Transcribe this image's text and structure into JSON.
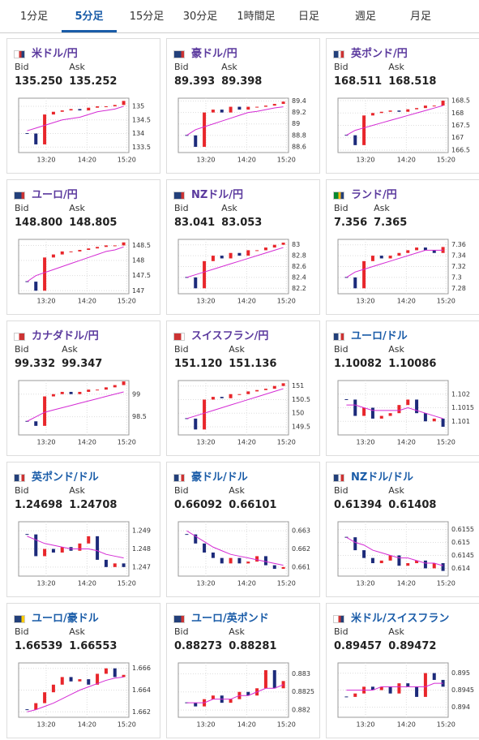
{
  "tabs": [
    "1分足",
    "5分足",
    "15分足",
    "30分足",
    "1時間足",
    "日足",
    "週足",
    "月足"
  ],
  "active_tab": 1,
  "labels": {
    "bid": "Bid",
    "ask": "Ask"
  },
  "xticks": [
    "13:20",
    "14:20",
    "15:20"
  ],
  "up_color": "#e8262b",
  "down_color": "#1c2a7a",
  "ma_color": "#d42bd4",
  "cards": [
    {
      "name": "米ドル/円",
      "name_color": "#5b3a9e",
      "bid": "135.250",
      "ask": "135.252",
      "ylim": [
        133.3,
        135.3
      ],
      "yticks": [
        135,
        134.5,
        134,
        133.5
      ],
      "close": [
        134.0,
        133.6,
        134.7,
        134.8,
        134.85,
        134.9,
        134.85,
        134.95,
        135.0,
        135.0,
        135.05,
        135.2
      ],
      "ma": [
        134.1,
        134.2,
        134.3,
        134.4,
        134.5,
        134.55,
        134.6,
        134.7,
        134.8,
        134.85,
        134.9,
        135.0
      ]
    },
    {
      "name": "豪ドル/円",
      "name_color": "#5b3a9e",
      "bid": "89.393",
      "ask": "89.398",
      "ylim": [
        88.5,
        89.45
      ],
      "yticks": [
        89.4,
        89.2,
        89,
        88.8,
        88.6
      ],
      "close": [
        88.8,
        88.6,
        89.2,
        89.25,
        89.2,
        89.3,
        89.25,
        89.3,
        89.3,
        89.32,
        89.35,
        89.39
      ],
      "ma": [
        88.8,
        88.9,
        88.95,
        89.0,
        89.05,
        89.1,
        89.15,
        89.2,
        89.22,
        89.25,
        89.28,
        89.3
      ]
    },
    {
      "name": "英ポンド/円",
      "name_color": "#5b3a9e",
      "bid": "168.511",
      "ask": "168.518",
      "ylim": [
        166.4,
        168.6
      ],
      "yticks": [
        168.5,
        168,
        167.5,
        167,
        166.5
      ],
      "close": [
        167.1,
        166.7,
        167.9,
        168.0,
        168.05,
        168.1,
        168.05,
        168.15,
        168.2,
        168.3,
        168.3,
        168.5
      ],
      "ma": [
        167.1,
        167.3,
        167.4,
        167.5,
        167.6,
        167.7,
        167.8,
        167.9,
        168.0,
        168.1,
        168.2,
        168.3
      ]
    },
    {
      "name": "ユーロ/円",
      "name_color": "#5b3a9e",
      "bid": "148.800",
      "ask": "148.805",
      "ylim": [
        146.9,
        148.7
      ],
      "yticks": [
        148.5,
        148,
        147.5,
        147
      ],
      "close": [
        147.3,
        147.0,
        148.1,
        148.2,
        148.3,
        148.3,
        148.35,
        148.4,
        148.45,
        148.5,
        148.5,
        148.6
      ],
      "ma": [
        147.3,
        147.5,
        147.6,
        147.7,
        147.8,
        147.9,
        148.0,
        148.1,
        148.2,
        148.3,
        148.35,
        148.45
      ]
    },
    {
      "name": "NZドル/円",
      "name_color": "#5b3a9e",
      "bid": "83.041",
      "ask": "83.053",
      "ylim": [
        82.1,
        83.1
      ],
      "yticks": [
        83,
        82.8,
        82.6,
        82.4,
        82.2
      ],
      "close": [
        82.4,
        82.2,
        82.7,
        82.8,
        82.75,
        82.85,
        82.8,
        82.9,
        82.9,
        82.95,
        83.0,
        83.04
      ],
      "ma": [
        82.4,
        82.45,
        82.5,
        82.55,
        82.6,
        82.65,
        82.7,
        82.75,
        82.8,
        82.85,
        82.9,
        82.95
      ]
    },
    {
      "name": "ランド/円",
      "name_color": "#5b3a9e",
      "bid": "7.356",
      "ask": "7.365",
      "ylim": [
        7.27,
        7.37
      ],
      "yticks": [
        7.36,
        7.34,
        7.32,
        7.3,
        7.28
      ],
      "close": [
        7.3,
        7.28,
        7.33,
        7.34,
        7.335,
        7.34,
        7.345,
        7.35,
        7.355,
        7.35,
        7.345,
        7.356
      ],
      "ma": [
        7.3,
        7.31,
        7.315,
        7.32,
        7.325,
        7.33,
        7.335,
        7.34,
        7.345,
        7.35,
        7.35,
        7.35
      ]
    },
    {
      "name": "カナダドル/円",
      "name_color": "#5b3a9e",
      "bid": "99.332",
      "ask": "99.347",
      "ylim": [
        98.1,
        99.3
      ],
      "yticks": [
        99,
        98.5
      ],
      "close": [
        98.4,
        98.3,
        98.95,
        99.0,
        99.05,
        99.0,
        99.05,
        99.1,
        99.1,
        99.15,
        99.2,
        99.28
      ],
      "ma": [
        98.4,
        98.5,
        98.6,
        98.65,
        98.7,
        98.75,
        98.8,
        98.85,
        98.9,
        98.95,
        99.0,
        99.05
      ]
    },
    {
      "name": "スイスフラン/円",
      "name_color": "#5b3a9e",
      "bid": "151.120",
      "ask": "151.136",
      "ylim": [
        149.2,
        151.2
      ],
      "yticks": [
        151,
        150.5,
        150,
        149.5
      ],
      "close": [
        149.8,
        149.4,
        150.5,
        150.6,
        150.55,
        150.7,
        150.7,
        150.8,
        150.85,
        150.9,
        151.0,
        151.1
      ],
      "ma": [
        149.8,
        149.9,
        150.0,
        150.1,
        150.2,
        150.3,
        150.4,
        150.5,
        150.6,
        150.7,
        150.8,
        150.9
      ]
    },
    {
      "name": "ユーロ/ドル",
      "name_color": "#1a5ca8",
      "bid": "1.10082",
      "ask": "1.10086",
      "ylim": [
        1.1005,
        1.1025
      ],
      "yticks": [
        1.102,
        1.1015,
        1.101
      ],
      "close": [
        1.1018,
        1.1012,
        1.1015,
        1.1011,
        1.1012,
        1.1013,
        1.1016,
        1.1018,
        1.1013,
        1.101,
        1.1011,
        1.1008
      ],
      "ma": [
        1.1016,
        1.1016,
        1.1015,
        1.1014,
        1.1014,
        1.1014,
        1.1014,
        1.1015,
        1.1014,
        1.1013,
        1.1012,
        1.1011
      ]
    },
    {
      "name": "英ポンド/ドル",
      "name_color": "#1a5ca8",
      "bid": "1.24698",
      "ask": "1.24708",
      "ylim": [
        1.2465,
        1.2495
      ],
      "yticks": [
        1.249,
        1.248,
        1.247
      ],
      "close": [
        1.2488,
        1.2476,
        1.248,
        1.2478,
        1.2481,
        1.2479,
        1.2483,
        1.2487,
        1.2474,
        1.247,
        1.2472,
        1.247
      ],
      "ma": [
        1.2487,
        1.2485,
        1.2483,
        1.2482,
        1.2481,
        1.248,
        1.248,
        1.248,
        1.2479,
        1.2477,
        1.2476,
        1.2475
      ]
    },
    {
      "name": "豪ドル/ドル",
      "name_color": "#1a5ca8",
      "bid": "0.66092",
      "ask": "0.66101",
      "ylim": [
        0.6605,
        0.6635
      ],
      "yticks": [
        0.663,
        0.662,
        0.661
      ],
      "close": [
        0.6628,
        0.6623,
        0.6618,
        0.6615,
        0.6612,
        0.6615,
        0.6612,
        0.6613,
        0.6616,
        0.6611,
        0.6609,
        0.661
      ],
      "ma": [
        0.663,
        0.6627,
        0.6624,
        0.6621,
        0.6619,
        0.6617,
        0.6616,
        0.6615,
        0.6614,
        0.6613,
        0.6612,
        0.6611
      ]
    },
    {
      "name": "NZドル/ドル",
      "name_color": "#1a5ca8",
      "bid": "0.61394",
      "ask": "0.61408",
      "ylim": [
        0.6137,
        0.6158
      ],
      "yticks": [
        0.6155,
        0.615,
        0.6145,
        0.614
      ],
      "close": [
        0.6152,
        0.6147,
        0.6144,
        0.6142,
        0.6143,
        0.6145,
        0.6141,
        0.6142,
        0.6143,
        0.614,
        0.6142,
        0.6139
      ],
      "ma": [
        0.6152,
        0.615,
        0.6149,
        0.6147,
        0.6146,
        0.6145,
        0.6144,
        0.6144,
        0.6143,
        0.6142,
        0.6142,
        0.6141
      ]
    },
    {
      "name": "ユーロ/豪ドル",
      "name_color": "#1a5ca8",
      "bid": "1.66539",
      "ask": "1.66553",
      "ylim": [
        1.6615,
        1.6665
      ],
      "yticks": [
        1.666,
        1.664,
        1.662
      ],
      "close": [
        1.6622,
        1.6628,
        1.6638,
        1.6645,
        1.6652,
        1.6648,
        1.665,
        1.6645,
        1.6655,
        1.666,
        1.6652,
        1.6654
      ],
      "ma": [
        1.662,
        1.6622,
        1.6625,
        1.6628,
        1.6632,
        1.6636,
        1.664,
        1.6643,
        1.6646,
        1.6649,
        1.6651,
        1.6652
      ]
    },
    {
      "name": "ユーロ/英ポンド",
      "name_color": "#1a5ca8",
      "bid": "0.88273",
      "ask": "0.88281",
      "ylim": [
        0.8818,
        0.8833
      ],
      "yticks": [
        0.883,
        0.8825,
        0.882
      ],
      "close": [
        0.8822,
        0.8821,
        0.8823,
        0.8824,
        0.8822,
        0.8823,
        0.8825,
        0.8824,
        0.8826,
        0.8831,
        0.8826,
        0.8828
      ],
      "ma": [
        0.8822,
        0.8822,
        0.8822,
        0.8823,
        0.8823,
        0.8823,
        0.8824,
        0.8824,
        0.8825,
        0.8826,
        0.8826,
        0.8827
      ]
    },
    {
      "name": "米ドル/スイスフラン",
      "name_color": "#1a5ca8",
      "bid": "0.89457",
      "ask": "0.89472",
      "ylim": [
        0.8937,
        0.8953
      ],
      "yticks": [
        0.895,
        0.8945,
        0.894
      ],
      "close": [
        0.8943,
        0.8944,
        0.8946,
        0.8945,
        0.8946,
        0.8944,
        0.8947,
        0.8946,
        0.8943,
        0.895,
        0.8948,
        0.8946
      ],
      "ma": [
        0.8945,
        0.8945,
        0.8945,
        0.8945,
        0.8946,
        0.8946,
        0.8946,
        0.8946,
        0.8946,
        0.8946,
        0.8947,
        0.8947
      ]
    }
  ]
}
